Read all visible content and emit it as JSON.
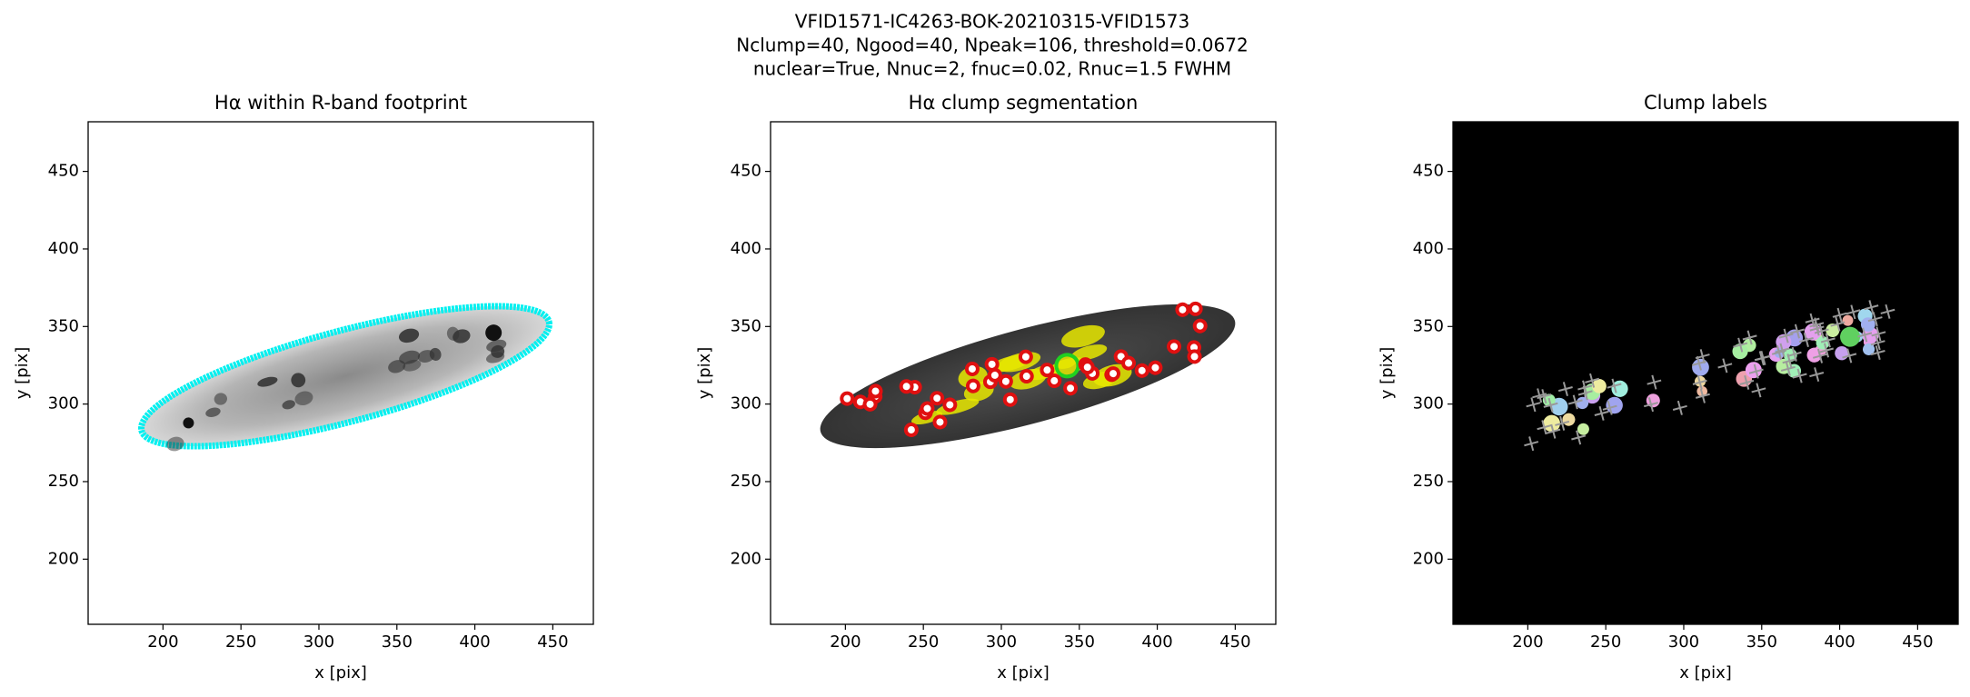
{
  "suptitle": [
    "VFID1571-IC4263-BOK-20210315-VFID1573",
    "Nclump=40, Ngood=40, Npeak=106, threshold=0.0672",
    "nuclear=True, Nnuc=2, fnuc=0.02, Rnuc=1.5 FWHM"
  ],
  "chart_data": [
    {
      "type": "image",
      "title": "Hα within R-band footprint",
      "xlabel": "x [pix]",
      "ylabel": "y [pix]",
      "background": "#ffffff",
      "xlim": [
        152,
        476
      ],
      "ylim": [
        158,
        482
      ],
      "xticks": [
        200,
        250,
        300,
        350,
        400,
        450
      ],
      "yticks": [
        200,
        250,
        300,
        350,
        400,
        450
      ]
    },
    {
      "type": "image",
      "title": "Hα clump segmentation",
      "xlabel": "x [pix]",
      "ylabel": "y [pix]",
      "background": "#ffffff",
      "xlim": [
        152,
        476
      ],
      "ylim": [
        158,
        482
      ],
      "xticks": [
        200,
        250,
        300,
        350,
        400,
        450
      ],
      "yticks": [
        200,
        250,
        300,
        350,
        400,
        450
      ]
    },
    {
      "type": "image",
      "title": "Clump labels",
      "xlabel": "x [pix]",
      "ylabel": "y [pix]",
      "background": "#000000",
      "xlim": [
        152,
        476
      ],
      "ylim": [
        158,
        482
      ],
      "xticks": [
        200,
        250,
        300,
        350,
        400,
        450
      ],
      "yticks": [
        200,
        250,
        300,
        350,
        400,
        450
      ]
    }
  ]
}
